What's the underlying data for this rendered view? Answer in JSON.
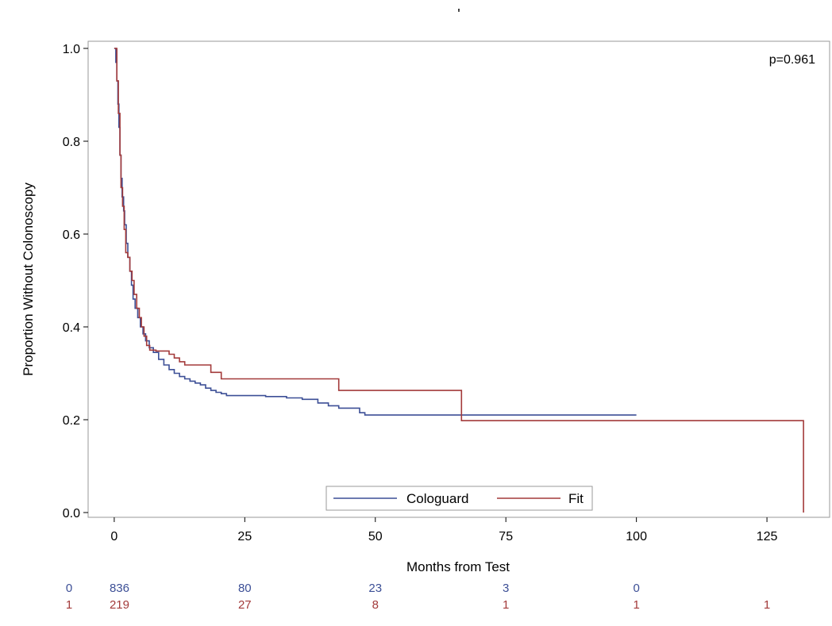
{
  "chart_data": {
    "type": "line",
    "subtype": "kaplan-meier step",
    "title": "'",
    "xlabel": "Months from Test",
    "ylabel": "Proportion Without Colonoscopy",
    "xlim": [
      -5,
      137
    ],
    "ylim": [
      0,
      1.0
    ],
    "x_ticks": [
      0,
      25,
      50,
      75,
      100,
      125
    ],
    "y_ticks": [
      0.0,
      0.2,
      0.4,
      0.6,
      0.8,
      1.0
    ],
    "x_tick_labels": [
      "0",
      "25",
      "50",
      "75",
      "100",
      "125"
    ],
    "y_tick_labels": [
      "0.0",
      "0.2",
      "0.4",
      "0.6",
      "0.8",
      "1.0"
    ],
    "grid": false,
    "annotation": "p=0.961",
    "legend": {
      "placement": "bottom-center-inside",
      "entries": [
        "Cologuard",
        "Fit"
      ]
    },
    "series": [
      {
        "name": "Cologuard",
        "color": "#3c4f96",
        "points": [
          [
            0,
            1.0
          ],
          [
            0.3,
            0.97
          ],
          [
            0.5,
            0.93
          ],
          [
            0.7,
            0.88
          ],
          [
            0.9,
            0.83
          ],
          [
            1.1,
            0.77
          ],
          [
            1.3,
            0.72
          ],
          [
            1.5,
            0.68
          ],
          [
            1.8,
            0.65
          ],
          [
            2.0,
            0.62
          ],
          [
            2.3,
            0.58
          ],
          [
            2.6,
            0.55
          ],
          [
            3.0,
            0.52
          ],
          [
            3.3,
            0.49
          ],
          [
            3.6,
            0.46
          ],
          [
            4.0,
            0.44
          ],
          [
            4.5,
            0.42
          ],
          [
            5.0,
            0.4
          ],
          [
            5.5,
            0.385
          ],
          [
            6.0,
            0.37
          ],
          [
            6.7,
            0.355
          ],
          [
            7.5,
            0.345
          ],
          [
            8.5,
            0.33
          ],
          [
            9.5,
            0.318
          ],
          [
            10.5,
            0.308
          ],
          [
            11.5,
            0.3
          ],
          [
            12.5,
            0.293
          ],
          [
            13.5,
            0.288
          ],
          [
            14.5,
            0.283
          ],
          [
            15.5,
            0.279
          ],
          [
            16.5,
            0.275
          ],
          [
            17.5,
            0.268
          ],
          [
            18.5,
            0.263
          ],
          [
            19.5,
            0.259
          ],
          [
            20.5,
            0.256
          ],
          [
            21.5,
            0.252
          ],
          [
            29,
            0.25
          ],
          [
            33,
            0.247
          ],
          [
            36,
            0.244
          ],
          [
            39,
            0.236
          ],
          [
            41,
            0.23
          ],
          [
            43,
            0.225
          ],
          [
            47,
            0.215
          ],
          [
            48,
            0.21
          ],
          [
            67,
            0.21
          ],
          [
            100,
            0.21
          ]
        ]
      },
      {
        "name": "Fit",
        "color": "#a33a3a",
        "points": [
          [
            0,
            1.0
          ],
          [
            0.5,
            0.93
          ],
          [
            0.8,
            0.86
          ],
          [
            1.1,
            0.77
          ],
          [
            1.3,
            0.7
          ],
          [
            1.6,
            0.66
          ],
          [
            1.9,
            0.61
          ],
          [
            2.2,
            0.56
          ],
          [
            2.6,
            0.55
          ],
          [
            3.0,
            0.52
          ],
          [
            3.4,
            0.5
          ],
          [
            3.8,
            0.47
          ],
          [
            4.3,
            0.44
          ],
          [
            4.8,
            0.42
          ],
          [
            5.2,
            0.4
          ],
          [
            5.7,
            0.38
          ],
          [
            6.2,
            0.36
          ],
          [
            6.8,
            0.35
          ],
          [
            8.0,
            0.348
          ],
          [
            10.5,
            0.341
          ],
          [
            11.5,
            0.333
          ],
          [
            12.5,
            0.325
          ],
          [
            13.5,
            0.318
          ],
          [
            18.5,
            0.302
          ],
          [
            20.5,
            0.288
          ],
          [
            43,
            0.263
          ],
          [
            66.5,
            0.198
          ],
          [
            132,
            0.0
          ]
        ]
      }
    ],
    "risk_table": {
      "groups": [
        {
          "label": "0",
          "color": "#3c4f96",
          "counts": [
            "836",
            "80",
            "23",
            "3",
            "0"
          ],
          "x": [
            1,
            25,
            50,
            75,
            100
          ]
        },
        {
          "label": "1",
          "color": "#a33a3a",
          "counts": [
            "219",
            "27",
            "8",
            "1",
            "1",
            "1"
          ],
          "x": [
            1,
            25,
            50,
            75,
            100,
            125
          ]
        }
      ]
    }
  }
}
